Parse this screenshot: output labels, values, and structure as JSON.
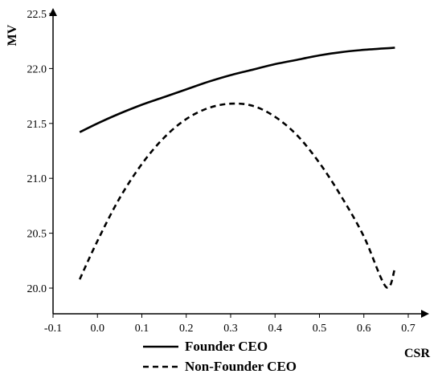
{
  "chart_data": {
    "type": "line",
    "xlabel": "CSR",
    "ylabel": "MV",
    "xlim": [
      -0.1,
      0.7
    ],
    "ylim": [
      20.0,
      22.5
    ],
    "xticks": [
      "-0.1",
      "0.0",
      "0.1",
      "0.2",
      "0.3",
      "0.4",
      "0.5",
      "0.6",
      "0.7"
    ],
    "yticks": [
      "20.0",
      "20.5",
      "21.0",
      "21.5",
      "22.0",
      "22.5"
    ],
    "grid": false,
    "legend_position": "bottom-left",
    "series": [
      {
        "name": "Founder CEO",
        "style": "solid",
        "color": "#000000",
        "x": [
          -0.04,
          0.0,
          0.05,
          0.1,
          0.15,
          0.2,
          0.25,
          0.3,
          0.35,
          0.4,
          0.45,
          0.5,
          0.55,
          0.6,
          0.67
        ],
        "y": [
          21.42,
          21.5,
          21.59,
          21.67,
          21.74,
          21.81,
          21.88,
          21.94,
          21.99,
          22.04,
          22.08,
          22.12,
          22.15,
          22.17,
          22.19
        ]
      },
      {
        "name": "Non-Founder CEO",
        "style": "dashed",
        "color": "#000000",
        "x": [
          -0.04,
          0.0,
          0.05,
          0.1,
          0.15,
          0.2,
          0.25,
          0.3,
          0.35,
          0.4,
          0.45,
          0.5,
          0.55,
          0.6,
          0.65,
          0.67
        ],
        "y": [
          20.08,
          20.43,
          20.82,
          21.13,
          21.37,
          21.54,
          21.64,
          21.68,
          21.66,
          21.56,
          21.39,
          21.14,
          20.83,
          20.47,
          20.01,
          20.18
        ]
      }
    ]
  }
}
